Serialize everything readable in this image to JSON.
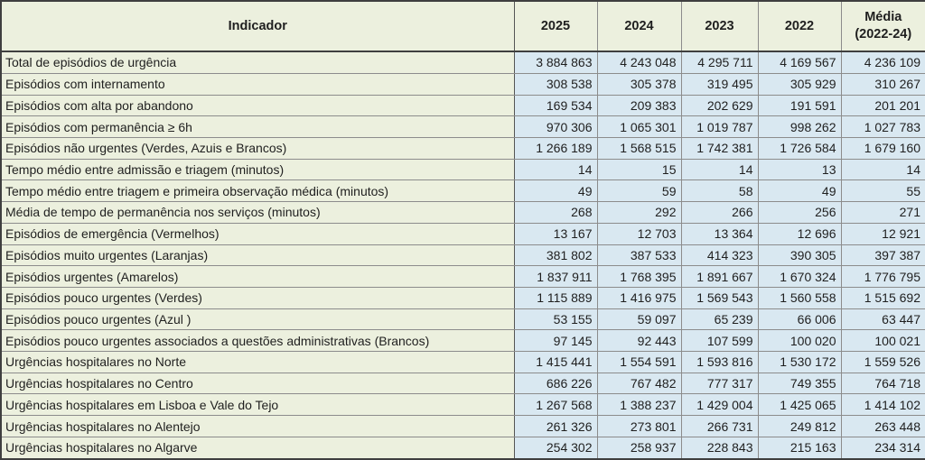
{
  "colors": {
    "header_bg": "#ECF0DE",
    "label_bg": "#ECF0DE",
    "value_bg": "#D9E8F1",
    "border_dark": "#3F3F3F",
    "border_mid": "#8C8C8C",
    "text": "#1F1F1F"
  },
  "chart_data": {
    "type": "table",
    "columns": [
      "Indicador",
      "2025",
      "2024",
      "2023",
      "2022",
      "Média (2022-24)"
    ],
    "rows": [
      {
        "label": "Total de episódios de urgência",
        "values": [
          "3 884 863",
          "4 243 048",
          "4 295 711",
          "4 169 567",
          "4 236 109"
        ]
      },
      {
        "label": "Episódios com internamento",
        "values": [
          "308 538",
          "305 378",
          "319 495",
          "305 929",
          "310 267"
        ]
      },
      {
        "label": "Episódios com alta por abandono",
        "values": [
          "169 534",
          "209 383",
          "202 629",
          "191 591",
          "201 201"
        ]
      },
      {
        "label": "Episódios com permanência ≥ 6h",
        "values": [
          "970 306",
          "1 065 301",
          "1 019 787",
          "998 262",
          "1 027 783"
        ]
      },
      {
        "label": "Episódios não urgentes (Verdes, Azuis e Brancos)",
        "values": [
          "1 266 189",
          "1 568 515",
          "1 742 381",
          "1 726 584",
          "1 679 160"
        ]
      },
      {
        "label": "Tempo médio entre admissão e triagem (minutos)",
        "values": [
          "14",
          "15",
          "14",
          "13",
          "14"
        ]
      },
      {
        "label": "Tempo médio entre triagem e primeira observação médica (minutos)",
        "values": [
          "49",
          "59",
          "58",
          "49",
          "55"
        ]
      },
      {
        "label": "Média de tempo de permanência nos serviços (minutos)",
        "values": [
          "268",
          "292",
          "266",
          "256",
          "271"
        ]
      },
      {
        "label": "Episódios de emergência (Vermelhos)",
        "values": [
          "13 167",
          "12 703",
          "13 364",
          "12 696",
          "12 921"
        ]
      },
      {
        "label": "Episódios muito urgentes (Laranjas)",
        "values": [
          "381 802",
          "387 533",
          "414 323",
          "390 305",
          "397 387"
        ]
      },
      {
        "label": "Episódios urgentes (Amarelos)",
        "values": [
          "1 837 911",
          "1 768 395",
          "1 891 667",
          "1 670 324",
          "1 776 795"
        ]
      },
      {
        "label": "Episódios pouco urgentes (Verdes)",
        "values": [
          "1 115 889",
          "1 416 975",
          "1 569 543",
          "1 560 558",
          "1 515 692"
        ]
      },
      {
        "label": "Episódios pouco urgentes (Azul )",
        "values": [
          "53 155",
          "59 097",
          "65 239",
          "66 006",
          "63 447"
        ]
      },
      {
        "label": "Episódios pouco urgentes associados a questões administrativas (Brancos)",
        "values": [
          "97 145",
          "92 443",
          "107 599",
          "100 020",
          "100 021"
        ]
      },
      {
        "label": "Urgências hospitalares no Norte",
        "values": [
          "1 415 441",
          "1 554 591",
          "1 593 816",
          "1 530 172",
          "1 559 526"
        ]
      },
      {
        "label": "Urgências hospitalares no Centro",
        "values": [
          "686 226",
          "767 482",
          "777 317",
          "749 355",
          "764 718"
        ]
      },
      {
        "label": "Urgências hospitalares em Lisboa e Vale do Tejo",
        "values": [
          "1 267 568",
          "1 388 237",
          "1 429 004",
          "1 425 065",
          "1 414 102"
        ]
      },
      {
        "label": "Urgências hospitalares no Alentejo",
        "values": [
          "261 326",
          "273 801",
          "266 731",
          "249 812",
          "263 448"
        ]
      },
      {
        "label": "Urgências hospitalares no Algarve",
        "values": [
          "254 302",
          "258 937",
          "228 843",
          "215 163",
          "234 314"
        ]
      }
    ]
  }
}
